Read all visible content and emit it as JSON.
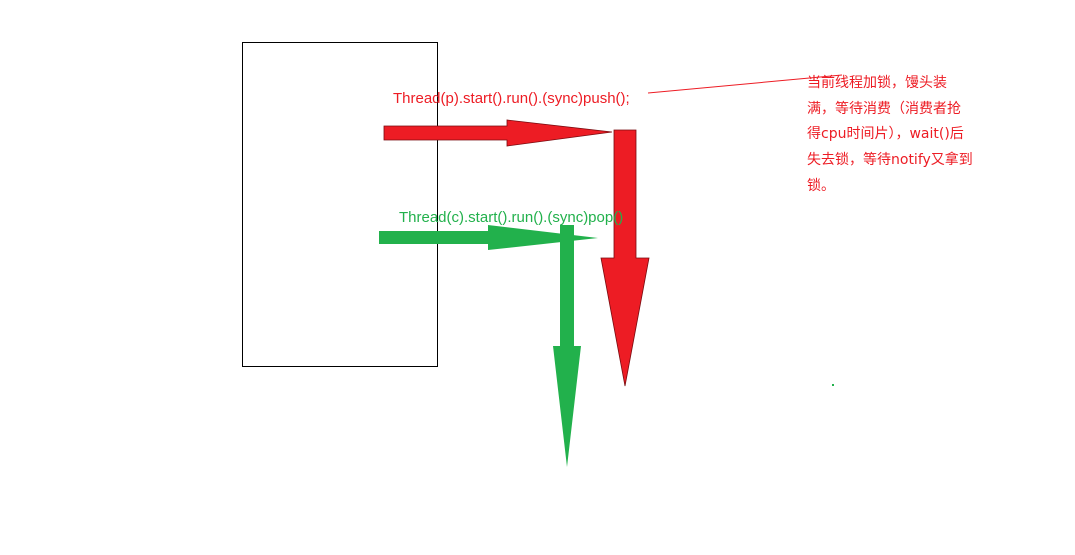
{
  "colors": {
    "producer": "#ed1c24",
    "consumer": "#22b14c",
    "outline": "#000000",
    "background": "#ffffff"
  },
  "producer_label": "Thread(p).start().run().(sync)push();",
  "consumer_label": "Thread(c).start().run().(sync)pop()",
  "note_lines": [
    "当前线程加锁，馒头装",
    "满，等待消费（消费者抢",
    "得cpu时间片），wait()后",
    "失去锁，等待notify又拿到",
    "锁。"
  ]
}
